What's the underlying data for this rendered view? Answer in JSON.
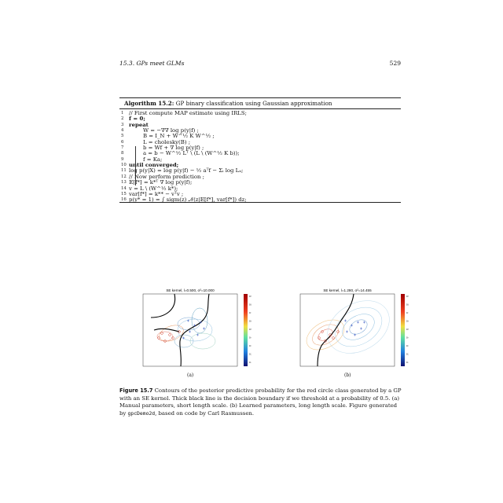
{
  "header": {
    "chapter": "15.3.   GPs meet GLMs",
    "page_number": "529"
  },
  "algorithm": {
    "label": "Algorithm 15.2:",
    "title": " GP binary classification using Gaussian approximation",
    "lines": [
      {
        "n": "1",
        "text": "// First compute MAP estimate using IRLS;"
      },
      {
        "n": "2",
        "text": "f = 0;"
      },
      {
        "n": "3",
        "text": "repeat"
      },
      {
        "n": "4",
        "text": "W = −∇∇ log p(y|f) ;"
      },
      {
        "n": "5",
        "text": "B = I_N + W^½ K W^½ ;"
      },
      {
        "n": "6",
        "text": "L = cholesky(B) ;"
      },
      {
        "n": "7",
        "text": "b = Wf + ∇ log p(y|f) ;"
      },
      {
        "n": "8",
        "text": "a = b − W^½ Lᵀ \\ (L \\ (W^½ K b));"
      },
      {
        "n": "9",
        "text": "f = Ka;"
      },
      {
        "n": "10",
        "text": "until converged;"
      },
      {
        "n": "11",
        "text": "log p(y|X) = log p(y|f) − ½ aᵀf − Σᵢ log Lᵢᵢ;"
      },
      {
        "n": "12",
        "text": "// Now perform prediction ;"
      },
      {
        "n": "13",
        "text": "𝔼[f*] = k*ᵀ ∇ log p(y|f);"
      },
      {
        "n": "14",
        "text": "v = L \\ (W^½ k*);"
      },
      {
        "n": "15",
        "text": "var[f*] = k** − vᵀv ;"
      },
      {
        "n": "16",
        "text": "p(y* = 1) = ∫ sigm(z) 𝒩(z|𝔼[f*], var[f*]) dz;"
      }
    ]
  },
  "figures": [
    {
      "title": "SE kernel, l=0.500, σ²=10.000",
      "label": "(a)"
    },
    {
      "title": "SE kernel, l=1.280, σ²=14.455",
      "label": "(b)"
    }
  ],
  "caption": {
    "label": "Figure 15.7",
    "text": "   Contours of the posterior predictive probability for the red circle class generated by a GP with an SE kernel. Thick black line is the decision boundary if we threshold at a probability of 0.5. (a) Manual parameters, short length scale. (b) Learned parameters, long length scale. Figure generated by ",
    "code": "gpcDemo2d",
    "suffix": ", based on code by Carl Rasmussen."
  },
  "colorbar_ticks": [
    "0.9",
    "0.8",
    "0.7",
    "0.6",
    "0.5",
    "0.4",
    "0.3",
    "0.2",
    "0.1"
  ],
  "colors": {
    "red_class": "#d04030",
    "blue_class": "#3050c0",
    "boundary": "#000000"
  }
}
